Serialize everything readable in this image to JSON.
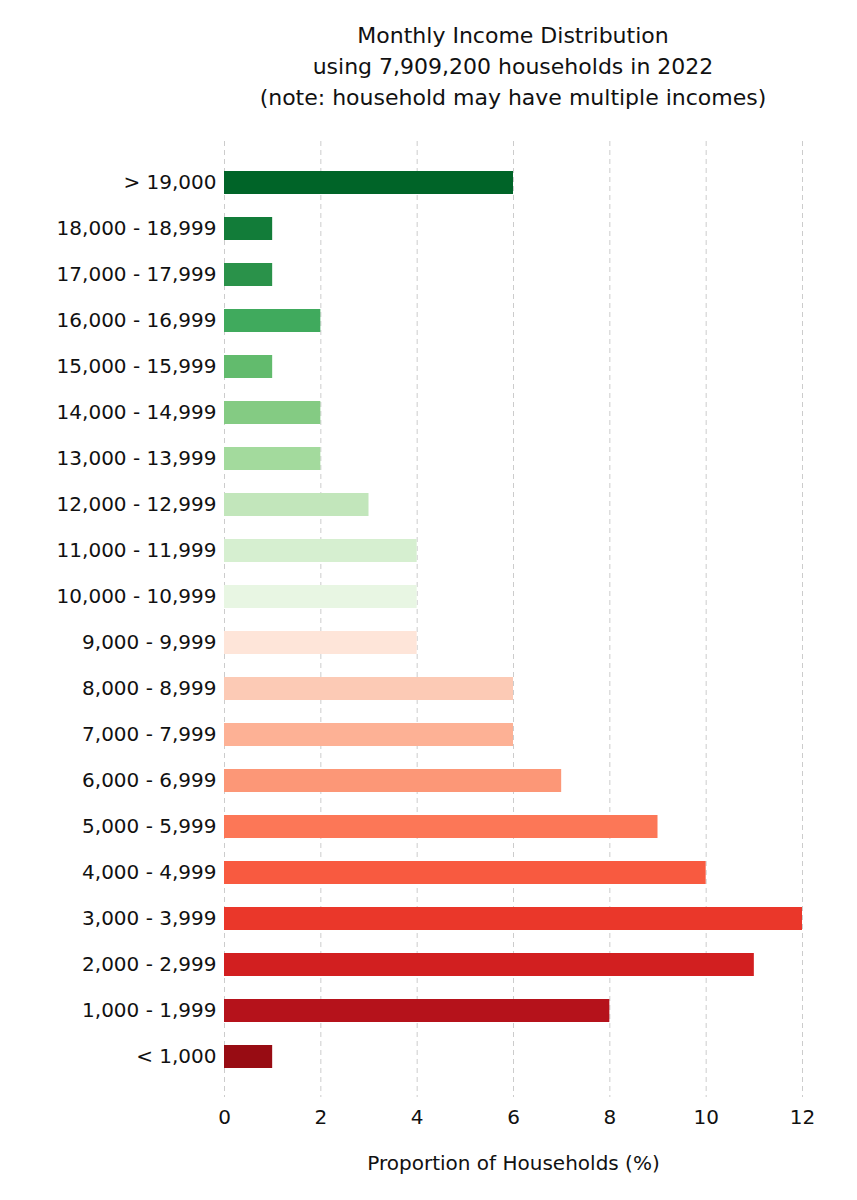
{
  "chart_data": {
    "type": "bar",
    "orientation": "horizontal",
    "title": "Monthly Income Distribution",
    "subtitle": [
      "using 7,909,200 households in 2022",
      "(note: household may have multiple incomes)"
    ],
    "x_label": "Proportion of Households (%)",
    "categories": [
      "< 1,000",
      "1,000 - 1,999",
      "2,000 - 2,999",
      "3,000 - 3,999",
      "4,000 - 4,999",
      "5,000 - 5,999",
      "6,000 - 6,999",
      "7,000 - 7,999",
      "8,000 - 8,999",
      "9,000 - 9,999",
      "10,000 - 10,999",
      "11,000 - 11,999",
      "12,000 - 12,999",
      "13,000 - 13,999",
      "14,000 - 14,999",
      "15,000 - 15,999",
      "16,000 - 16,999",
      "17,000 - 17,999",
      "18,000 - 18,999",
      "> 19,000"
    ],
    "values": [
      1,
      8,
      11,
      12,
      10,
      9,
      7,
      6,
      6,
      4,
      4,
      4,
      3,
      2,
      2,
      1,
      2,
      1,
      1,
      6
    ],
    "colors": [
      "#980c13",
      "#b5121b",
      "#d21f20",
      "#ea372a",
      "#f85a40",
      "#fc7757",
      "#fc9777",
      "#fdb195",
      "#fccab5",
      "#fee5d9",
      "#e8f6e3",
      "#d6efd0",
      "#c2e6bb",
      "#a3da9d",
      "#84cb83",
      "#62bb6d",
      "#40aa5d",
      "#2a924a",
      "#127c39",
      "#006428"
    ],
    "xlim": [
      0,
      12
    ],
    "xticks": [
      0,
      2,
      4,
      6,
      8,
      10,
      12
    ],
    "grid": true
  }
}
